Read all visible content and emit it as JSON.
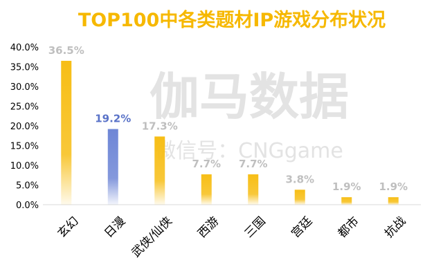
{
  "chart_data": {
    "type": "bar",
    "title": "TOP100中各类题材IP游戏分布状况",
    "watermark": "伽马数据",
    "watermark_sub": "微信号：CNGgame",
    "categories": [
      "玄幻",
      "日漫",
      "武侠/仙侠",
      "西游",
      "三国",
      "宫廷",
      "都市",
      "抗战"
    ],
    "values": [
      36.5,
      19.2,
      17.3,
      7.7,
      7.7,
      3.8,
      1.9,
      1.9
    ],
    "value_labels": [
      "36.5%",
      "19.2%",
      "17.3%",
      "7.7%",
      "7.7%",
      "3.8%",
      "1.9%",
      "1.9%"
    ],
    "y_ticks": [
      "0.0%",
      "5.0%",
      "10.0%",
      "15.0%",
      "20.0%",
      "25.0%",
      "30.0%",
      "35.0%",
      "40.0%"
    ],
    "ylim": [
      0,
      40
    ],
    "grid": false,
    "highlight_index": 1,
    "colors": {
      "title": "#F6B800",
      "bar": "#F7BE16",
      "bar_highlight": "#6E86D6",
      "label": "#BFBFBF",
      "label_highlight": "#5A73C8",
      "axis_text": "#000000",
      "watermark": "#E3E3E3"
    }
  }
}
